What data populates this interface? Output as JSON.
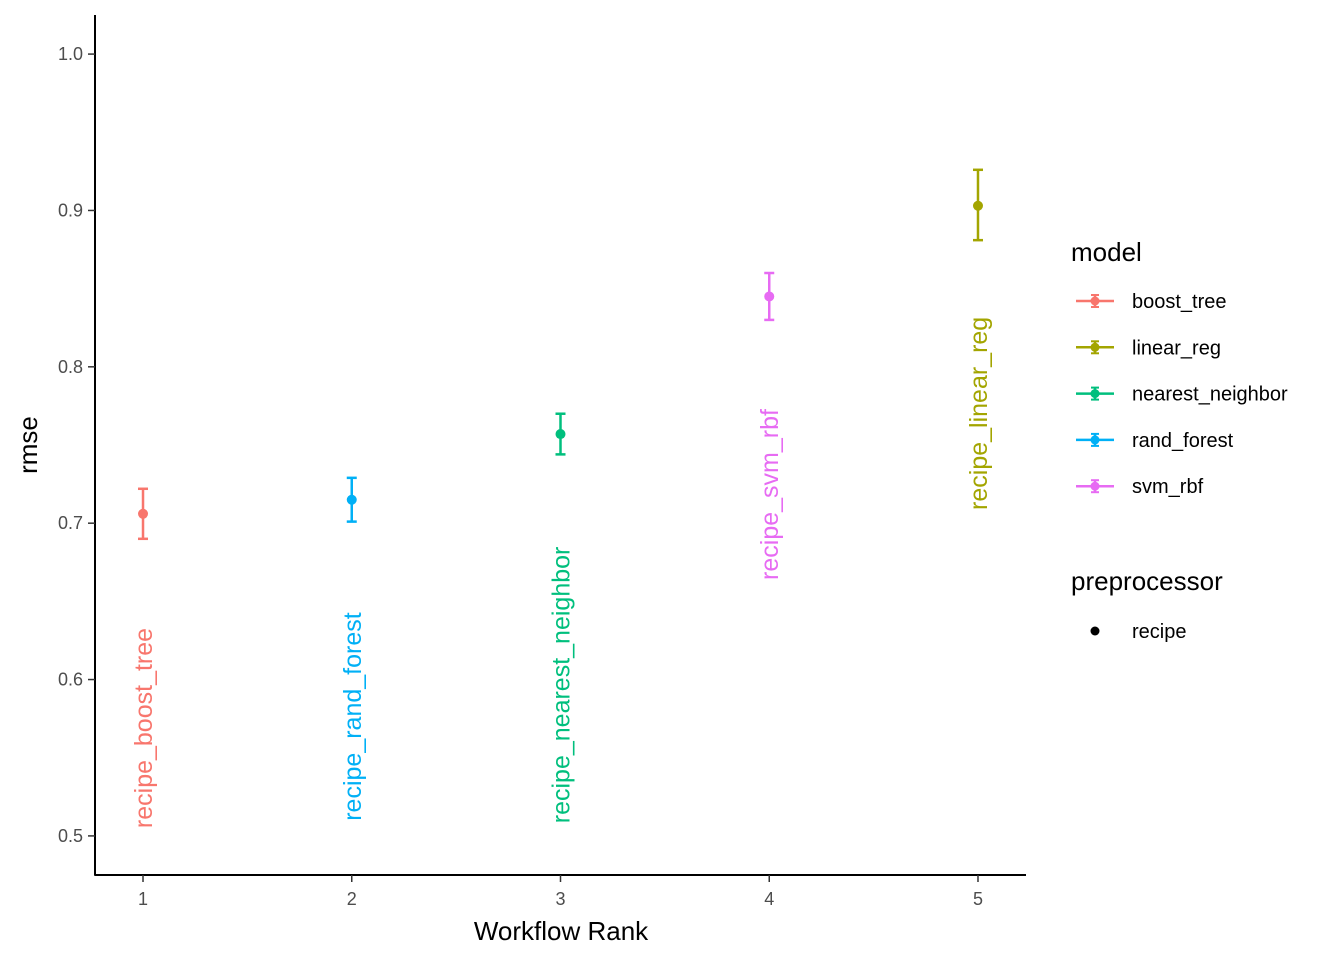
{
  "chart_data": {
    "type": "scatter",
    "xlabel": "Workflow Rank",
    "ylabel": "rmse",
    "xlim": [
      0.77,
      5.23
    ],
    "ylim": [
      0.475,
      1.025
    ],
    "x_ticks": [
      "1",
      "2",
      "3",
      "4",
      "5"
    ],
    "y_ticks": [
      "0.5",
      "0.6",
      "0.7",
      "0.8",
      "0.9",
      "1.0"
    ],
    "grid": false,
    "legend_position": "right",
    "points": [
      {
        "rank": 1,
        "model": "boost_tree",
        "label": "recipe_boost_tree",
        "rmse": 0.706,
        "lower": 0.69,
        "upper": 0.722,
        "label_top": 0.633
      },
      {
        "rank": 2,
        "model": "rand_forest",
        "label": "recipe_rand_forest",
        "rmse": 0.715,
        "lower": 0.701,
        "upper": 0.729,
        "label_top": 0.643
      },
      {
        "rank": 3,
        "model": "nearest_neighbor",
        "label": "recipe_nearest_neighbor",
        "rmse": 0.757,
        "lower": 0.744,
        "upper": 0.77,
        "label_top": 0.685
      },
      {
        "rank": 4,
        "model": "svm_rbf",
        "label": "recipe_svm_rbf",
        "rmse": 0.845,
        "lower": 0.83,
        "upper": 0.86,
        "label_top": 0.773
      },
      {
        "rank": 5,
        "model": "linear_reg",
        "label": "recipe_linear_reg",
        "rmse": 0.903,
        "lower": 0.881,
        "upper": 0.926,
        "label_top": 0.832
      }
    ],
    "legend": {
      "model": {
        "title": "model",
        "items": [
          {
            "name": "boost_tree",
            "color": "#F8766D"
          },
          {
            "name": "linear_reg",
            "color": "#A3A500"
          },
          {
            "name": "nearest_neighbor",
            "color": "#00BF7D"
          },
          {
            "name": "rand_forest",
            "color": "#00B0F6"
          },
          {
            "name": "svm_rbf",
            "color": "#E76BF3"
          }
        ]
      },
      "preprocessor": {
        "title": "preprocessor",
        "items": [
          {
            "name": "recipe"
          }
        ]
      }
    }
  }
}
